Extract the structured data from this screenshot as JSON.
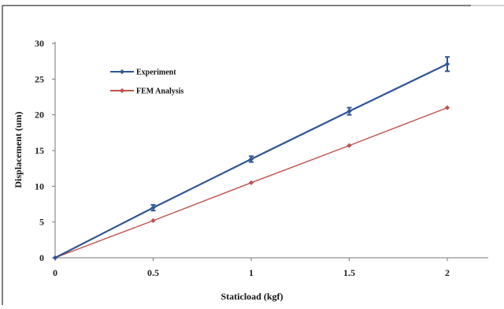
{
  "chart_data": {
    "type": "line",
    "xlabel": "Staticload (kgf)",
    "ylabel": "Displacement (um)",
    "xlim": [
      0,
      2
    ],
    "ylim": [
      0,
      30
    ],
    "x_ticks": [
      "0",
      "0.5",
      "1",
      "1.5",
      "2"
    ],
    "y_ticks": [
      "0",
      "5",
      "10",
      "15",
      "20",
      "25",
      "30"
    ],
    "x_tick_values": [
      0,
      0.5,
      1,
      1.5,
      2
    ],
    "y_tick_values": [
      0,
      5,
      10,
      15,
      20,
      25,
      30
    ],
    "grid": false,
    "legend_position": "top-left",
    "series": [
      {
        "name": "Experiment",
        "color": "#2f5597",
        "x": [
          0,
          0.5,
          1,
          1.5,
          2
        ],
        "y": [
          0,
          7.0,
          13.8,
          20.5,
          27.1
        ],
        "error": [
          0,
          0.4,
          0.4,
          0.5,
          1.0
        ]
      },
      {
        "name": "FEM Analysis",
        "color": "#c0504d",
        "x": [
          0,
          0.5,
          1,
          1.5,
          2
        ],
        "y": [
          0,
          5.2,
          10.5,
          15.7,
          21.0
        ]
      }
    ]
  }
}
